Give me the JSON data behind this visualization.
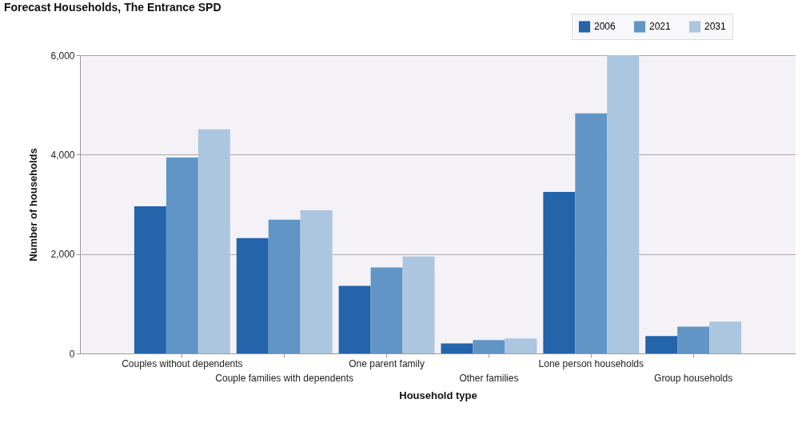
{
  "chart_data": {
    "type": "bar",
    "title": "Forecast Households, The Entrance SPD",
    "xlabel": "Household type",
    "ylabel": "Number of households",
    "categories": [
      "Couples without dependents",
      "Couple families with dependents",
      "One parent family",
      "Other families",
      "Lone person households",
      "Group households"
    ],
    "series": [
      {
        "name": "2006",
        "color": "#2364aa",
        "values": [
          2960,
          2320,
          1360,
          200,
          3250,
          350
        ]
      },
      {
        "name": "2021",
        "color": "#6195c6",
        "values": [
          3940,
          2690,
          1730,
          270,
          4830,
          540
        ]
      },
      {
        "name": "2031",
        "color": "#adc6e0",
        "values": [
          4510,
          2880,
          1950,
          300,
          6000,
          640
        ]
      }
    ],
    "ylim": [
      0,
      6000
    ],
    "yticks": [
      0,
      {
        "value": 2000,
        "label": "2,000"
      },
      {
        "value": 4000,
        "label": "4,000"
      },
      {
        "value": 6000,
        "label": "6,000"
      }
    ],
    "grid": "y",
    "legend": "top right"
  }
}
